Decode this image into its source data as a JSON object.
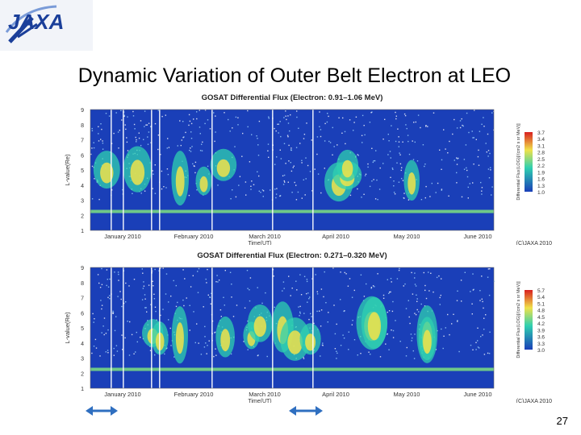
{
  "logo": {
    "text": "JAXA"
  },
  "title": "Dynamic Variation of Outer Belt Electron at LEO",
  "page_number": "27",
  "colors": {
    "low": "#1a3fb8",
    "mid": "#2fd0b0",
    "high": "#f0e24a",
    "peak": "#d82020",
    "arrow": "#2f6fc0"
  },
  "chart_data": [
    {
      "type": "heatmap",
      "title": "GOSAT Differential Flux (Electron: 0.91–1.06 MeV)",
      "xlabel": "Time(UT)",
      "ylabel": "L-value(Re)",
      "x_categories": [
        "January 2010",
        "February 2010",
        "March 2010",
        "April 2010",
        "May 2010",
        "June 2010"
      ],
      "y_ticks": [
        "9",
        "8",
        "7",
        "6",
        "5",
        "4",
        "3",
        "2",
        "1"
      ],
      "colorbar_label": "Differential Flux(LOG)[/(cm2 s sr MeV)]",
      "colorbar_ticks": [
        "3.7",
        "3.4",
        "3.1",
        "2.8",
        "2.5",
        "2.2",
        "1.9",
        "1.6",
        "1.3",
        "1.0"
      ],
      "credit": "(C)JAXA 2010"
    },
    {
      "type": "heatmap",
      "title": "GOSAT Differential Flux (Electron: 0.271–0.320 MeV)",
      "xlabel": "Time(UT)",
      "ylabel": "L-value(Re)",
      "x_categories": [
        "January 2010",
        "February 2010",
        "March 2010",
        "April 2010",
        "May 2010",
        "June 2010"
      ],
      "y_ticks": [
        "9",
        "8",
        "7",
        "6",
        "5",
        "4",
        "3",
        "2",
        "1"
      ],
      "colorbar_label": "Differential Flux(LOG)[/(cm2 s sr MeV)]",
      "colorbar_ticks": [
        "5.7",
        "5.4",
        "5.1",
        "4.8",
        "4.5",
        "4.2",
        "3.9",
        "3.6",
        "3.3",
        "3.0"
      ],
      "credit": "(C)JAXA 2010"
    }
  ]
}
